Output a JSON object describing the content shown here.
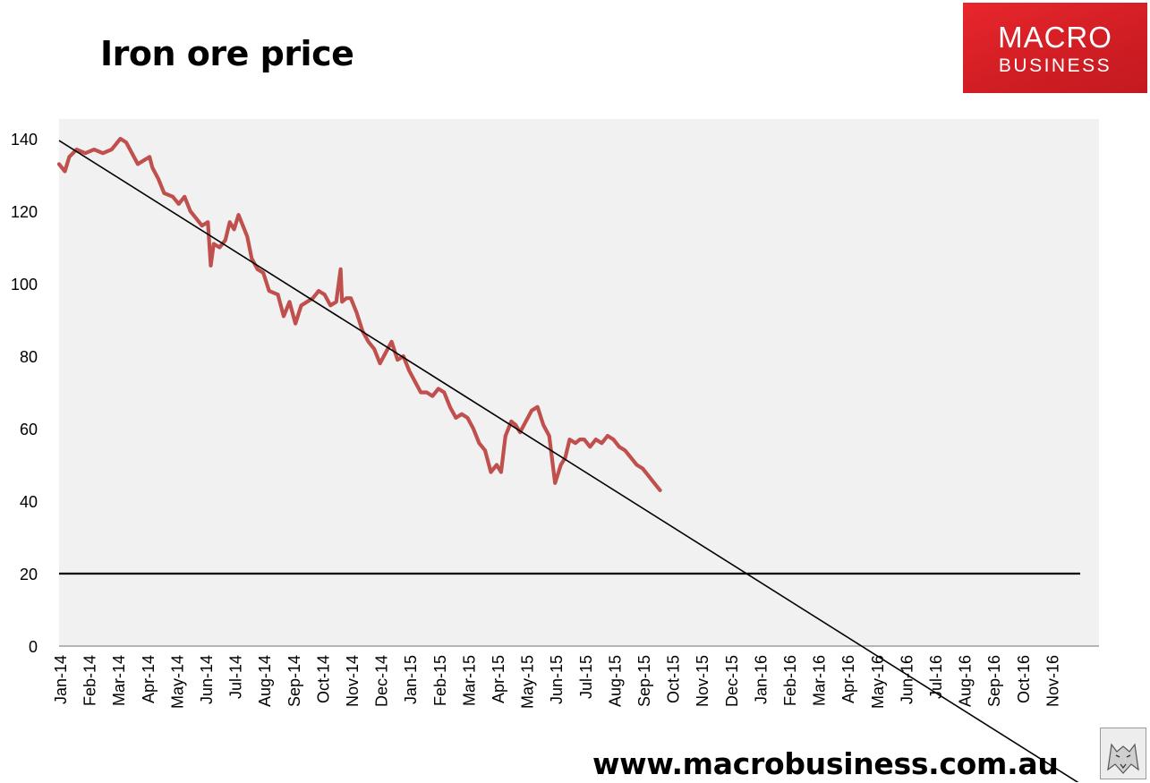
{
  "title": "Iron ore price",
  "logo": {
    "line1": "MACRO",
    "line2": "BUSINESS",
    "color": "#d7232a"
  },
  "footer_url": "www.macrobusiness.com.au",
  "chart_data": {
    "type": "line",
    "title": "Iron ore price",
    "xlabel": "",
    "ylabel": "",
    "ylim": [
      0,
      145
    ],
    "yticks": [
      0,
      20,
      40,
      60,
      80,
      100,
      120,
      140
    ],
    "x_range_months": [
      0,
      35
    ],
    "categories": [
      "Jan-14",
      "Feb-14",
      "Mar-14",
      "Apr-14",
      "May-14",
      "Jun-14",
      "Jul-14",
      "Aug-14",
      "Sep-14",
      "Oct-14",
      "Nov-14",
      "Dec-14",
      "Jan-15",
      "Feb-15",
      "Mar-15",
      "Apr-15",
      "May-15",
      "Jun-15",
      "Jul-15",
      "Aug-15",
      "Sep-15",
      "Oct-15",
      "Nov-15",
      "Dec-15",
      "Jan-16",
      "Feb-16",
      "Mar-16",
      "Apr-16",
      "May-16",
      "Jun-16",
      "Jul-16",
      "Aug-16",
      "Sep-16",
      "Oct-16",
      "Nov-16"
    ],
    "background": "#f1f1f1",
    "series": [
      {
        "name": "Iron ore price",
        "color": "#c0504d",
        "x": [
          0.0,
          0.2,
          0.35,
          0.6,
          0.9,
          1.2,
          1.5,
          1.8,
          2.1,
          2.3,
          2.5,
          2.7,
          2.9,
          3.1,
          3.2,
          3.4,
          3.6,
          3.9,
          4.1,
          4.3,
          4.5,
          4.7,
          4.9,
          5.1,
          5.2,
          5.3,
          5.5,
          5.7,
          5.85,
          6.0,
          6.15,
          6.3,
          6.45,
          6.6,
          6.8,
          7.0,
          7.2,
          7.5,
          7.7,
          7.9,
          8.1,
          8.3,
          8.5,
          8.7,
          8.9,
          9.1,
          9.3,
          9.5,
          9.65,
          9.7,
          9.85,
          10.0,
          10.2,
          10.4,
          10.6,
          10.8,
          11.0,
          11.2,
          11.4,
          11.6,
          11.8,
          12.0,
          12.2,
          12.4,
          12.6,
          12.8,
          13.0,
          13.2,
          13.4,
          13.6,
          13.8,
          14.0,
          14.2,
          14.4,
          14.6,
          14.8,
          15.0,
          15.15,
          15.3,
          15.5,
          15.65,
          15.8,
          16.0,
          16.2,
          16.4,
          16.6,
          16.8,
          17.0,
          17.2,
          17.35,
          17.5,
          17.7,
          17.85,
          18.0,
          18.2,
          18.4,
          18.6,
          18.8,
          19.0,
          19.2,
          19.4,
          19.6,
          19.8,
          20.0,
          20.2,
          20.4,
          20.6
        ],
        "values": [
          133,
          131,
          135,
          137,
          136,
          137,
          136,
          137,
          140,
          139,
          136,
          133,
          134,
          135,
          132,
          129,
          125,
          124,
          122,
          124,
          120,
          118,
          116,
          117,
          105,
          111,
          110,
          112,
          117,
          115,
          119,
          116,
          113,
          107,
          104,
          103,
          98,
          97,
          91,
          95,
          89,
          94,
          95,
          96,
          98,
          97,
          94,
          95,
          104,
          95,
          96,
          96,
          92,
          87,
          84,
          82,
          78,
          81,
          84,
          79,
          80,
          76,
          73,
          70,
          70,
          69,
          71,
          70,
          66,
          63,
          64,
          63,
          60,
          56,
          54,
          48,
          50,
          48,
          58,
          62,
          61,
          59,
          62,
          65,
          66,
          61,
          58,
          45,
          50,
          52,
          57,
          56,
          57,
          57,
          55,
          57,
          56,
          58,
          57,
          55,
          54,
          52,
          50,
          49,
          47,
          45,
          43
        ]
      },
      {
        "name": "Trend line",
        "color": "#000000",
        "x": [
          0,
          35
        ],
        "y": [
          139.5,
          -38
        ]
      },
      {
        "name": "Reference level",
        "color": "#000000",
        "x": [
          0,
          35
        ],
        "y": [
          20,
          20
        ]
      }
    ]
  }
}
